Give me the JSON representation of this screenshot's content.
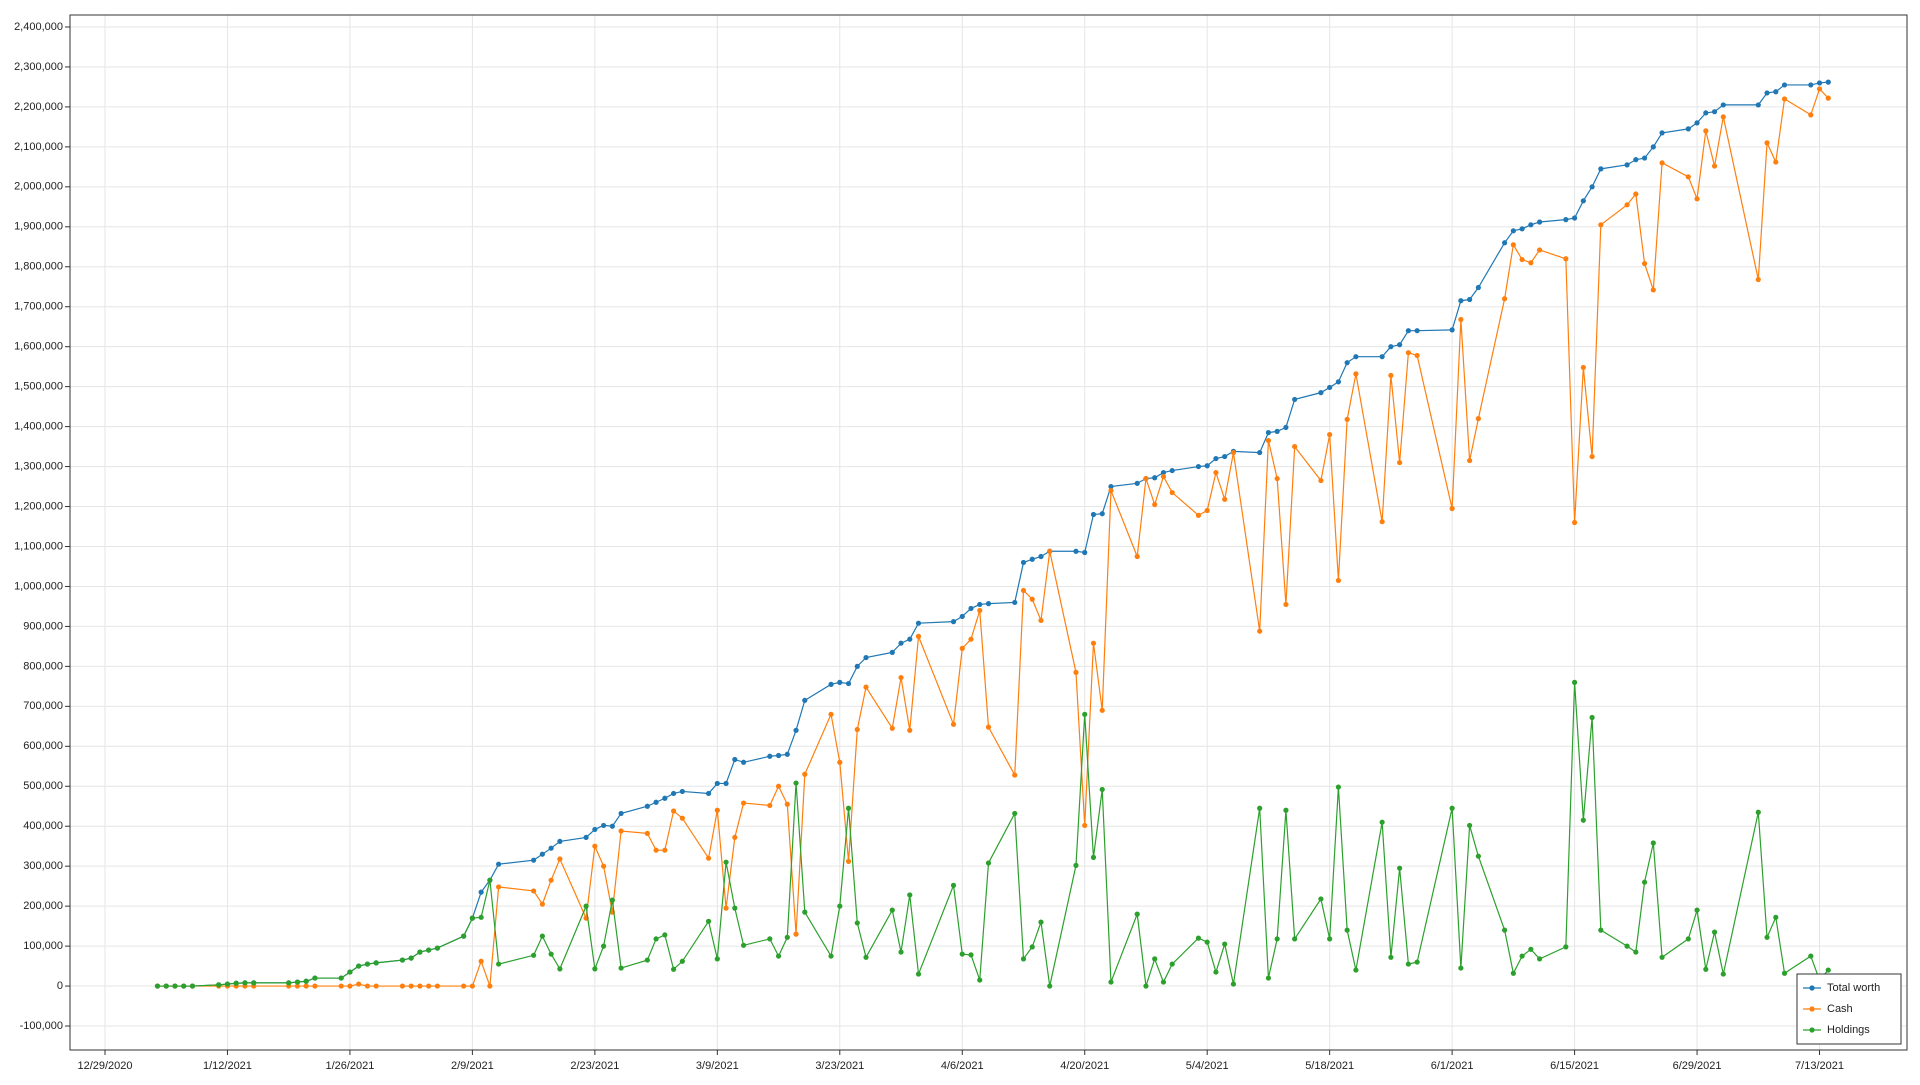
{
  "chart_data": {
    "type": "line",
    "x": [
      "1/4/2021",
      "1/5/2021",
      "1/6/2021",
      "1/7/2021",
      "1/8/2021",
      "1/11/2021",
      "1/12/2021",
      "1/13/2021",
      "1/14/2021",
      "1/15/2021",
      "1/19/2021",
      "1/20/2021",
      "1/21/2021",
      "1/22/2021",
      "1/25/2021",
      "1/26/2021",
      "1/27/2021",
      "1/28/2021",
      "1/29/2021",
      "2/1/2021",
      "2/2/2021",
      "2/3/2021",
      "2/4/2021",
      "2/5/2021",
      "2/8/2021",
      "2/9/2021",
      "2/10/2021",
      "2/11/2021",
      "2/12/2021",
      "2/16/2021",
      "2/17/2021",
      "2/18/2021",
      "2/19/2021",
      "2/22/2021",
      "2/23/2021",
      "2/24/2021",
      "2/25/2021",
      "2/26/2021",
      "3/1/2021",
      "3/2/2021",
      "3/3/2021",
      "3/4/2021",
      "3/5/2021",
      "3/8/2021",
      "3/9/2021",
      "3/10/2021",
      "3/11/2021",
      "3/12/2021",
      "3/15/2021",
      "3/16/2021",
      "3/17/2021",
      "3/18/2021",
      "3/19/2021",
      "3/22/2021",
      "3/23/2021",
      "3/24/2021",
      "3/25/2021",
      "3/26/2021",
      "3/29/2021",
      "3/30/2021",
      "3/31/2021",
      "4/1/2021",
      "4/5/2021",
      "4/6/2021",
      "4/7/2021",
      "4/8/2021",
      "4/9/2021",
      "4/12/2021",
      "4/13/2021",
      "4/14/2021",
      "4/15/2021",
      "4/16/2021",
      "4/19/2021",
      "4/20/2021",
      "4/21/2021",
      "4/22/2021",
      "4/23/2021",
      "4/26/2021",
      "4/27/2021",
      "4/28/2021",
      "4/29/2021",
      "4/30/2021",
      "5/3/2021",
      "5/4/2021",
      "5/5/2021",
      "5/6/2021",
      "5/7/2021",
      "5/10/2021",
      "5/11/2021",
      "5/12/2021",
      "5/13/2021",
      "5/14/2021",
      "5/17/2021",
      "5/18/2021",
      "5/19/2021",
      "5/20/2021",
      "5/21/2021",
      "5/24/2021",
      "5/25/2021",
      "5/26/2021",
      "5/27/2021",
      "5/28/2021",
      "6/1/2021",
      "6/2/2021",
      "6/3/2021",
      "6/4/2021",
      "6/7/2021",
      "6/8/2021",
      "6/9/2021",
      "6/10/2021",
      "6/11/2021",
      "6/14/2021",
      "6/15/2021",
      "6/16/2021",
      "6/17/2021",
      "6/18/2021",
      "6/21/2021",
      "6/22/2021",
      "6/23/2021",
      "6/24/2021",
      "6/25/2021",
      "6/28/2021",
      "6/29/2021",
      "6/30/2021",
      "7/1/2021",
      "7/2/2021",
      "7/6/2021",
      "7/7/2021",
      "7/8/2021",
      "7/9/2021",
      "7/12/2021",
      "7/13/2021",
      "7/14/2021"
    ],
    "series": [
      {
        "name": "Total worth",
        "color": "#1f77b4",
        "values": [
          0,
          0,
          0,
          0,
          0,
          3000,
          5000,
          7000,
          8000,
          8000,
          8000,
          10000,
          12000,
          20000,
          20000,
          35000,
          50000,
          55000,
          58000,
          65000,
          70000,
          85000,
          90000,
          95000,
          125000,
          170000,
          235000,
          265000,
          305000,
          315000,
          330000,
          345000,
          362000,
          372000,
          392000,
          402000,
          400000,
          432000,
          450000,
          460000,
          470000,
          482000,
          487000,
          482000,
          507000,
          507000,
          567000,
          560000,
          575000,
          577000,
          580000,
          640000,
          715000,
          755000,
          760000,
          757000,
          800000,
          822000,
          835000,
          858000,
          868000,
          908000,
          912000,
          925000,
          945000,
          955000,
          957000,
          960000,
          1060000,
          1068000,
          1075000,
          1088000,
          1088000,
          1085000,
          1180000,
          1182000,
          1250000,
          1258000,
          1270000,
          1272000,
          1285000,
          1290000,
          1300000,
          1302000,
          1320000,
          1325000,
          1338000,
          1335000,
          1385000,
          1388000,
          1398000,
          1468000,
          1485000,
          1498000,
          1512000,
          1560000,
          1575000,
          1575000,
          1600000,
          1605000,
          1640000,
          1640000,
          1642000,
          1715000,
          1718000,
          1748000,
          1860000,
          1890000,
          1895000,
          1905000,
          1912000,
          1918000,
          1922000,
          1965000,
          2000000,
          2045000,
          2055000,
          2068000,
          2072000,
          2100000,
          2135000,
          2145000,
          2160000,
          2185000,
          2188000,
          2205000,
          2205000,
          2235000,
          2238000,
          2255000,
          2255000,
          2260000,
          2262000
        ]
      },
      {
        "name": "Cash",
        "color": "#ff7f0e",
        "values": [
          0,
          0,
          0,
          0,
          0,
          0,
          0,
          0,
          0,
          0,
          0,
          0,
          0,
          0,
          0,
          0,
          5000,
          0,
          0,
          0,
          0,
          0,
          0,
          0,
          0,
          0,
          62000,
          0,
          248000,
          238000,
          205000,
          265000,
          318000,
          170000,
          350000,
          300000,
          185000,
          388000,
          382000,
          340000,
          340000,
          438000,
          420000,
          320000,
          440000,
          195000,
          372000,
          458000,
          452000,
          500000,
          455000,
          130000,
          530000,
          680000,
          560000,
          312000,
          642000,
          748000,
          645000,
          772000,
          640000,
          875000,
          655000,
          845000,
          868000,
          940000,
          648000,
          528000,
          990000,
          968000,
          915000,
          1088000,
          785000,
          402000,
          858000,
          690000,
          1240000,
          1075000,
          1270000,
          1205000,
          1275000,
          1235000,
          1178000,
          1190000,
          1285000,
          1218000,
          1335000,
          888000,
          1365000,
          1270000,
          955000,
          1350000,
          1265000,
          1380000,
          1015000,
          1418000,
          1532000,
          1162000,
          1528000,
          1310000,
          1585000,
          1578000,
          1195000,
          1668000,
          1315000,
          1420000,
          1720000,
          1855000,
          1818000,
          1810000,
          1842000,
          1820000,
          1160000,
          1548000,
          1325000,
          1905000,
          1955000,
          1982000,
          1808000,
          1742000,
          2060000,
          2025000,
          1970000,
          2140000,
          2052000,
          2175000,
          1768000,
          2110000,
          2062000,
          2220000,
          2180000,
          2245000,
          2222000
        ]
      },
      {
        "name": "Holdings",
        "color": "#2ca02c",
        "values": [
          0,
          0,
          0,
          0,
          0,
          3000,
          5000,
          7000,
          8000,
          8000,
          8000,
          10000,
          12000,
          20000,
          20000,
          35000,
          50000,
          55000,
          58000,
          65000,
          70000,
          85000,
          90000,
          95000,
          125000,
          170000,
          172000,
          265000,
          55000,
          77000,
          125000,
          80000,
          43000,
          200000,
          43000,
          100000,
          215000,
          45000,
          65000,
          118000,
          128000,
          42000,
          62000,
          162000,
          68000,
          310000,
          195000,
          102000,
          118000,
          75000,
          122000,
          508000,
          185000,
          75000,
          200000,
          445000,
          158000,
          72000,
          190000,
          85000,
          228000,
          30000,
          252000,
          80000,
          78000,
          15000,
          308000,
          432000,
          68000,
          98000,
          160000,
          0,
          302000,
          680000,
          322000,
          492000,
          10000,
          180000,
          0,
          68000,
          10000,
          55000,
          120000,
          110000,
          35000,
          105000,
          5000,
          445000,
          20000,
          118000,
          440000,
          118000,
          218000,
          118000,
          498000,
          140000,
          40000,
          410000,
          72000,
          295000,
          55000,
          60000,
          445000,
          45000,
          402000,
          325000,
          140000,
          32000,
          75000,
          92000,
          68000,
          98000,
          760000,
          415000,
          672000,
          140000,
          100000,
          85000,
          260000,
          358000,
          72000,
          118000,
          190000,
          42000,
          135000,
          30000,
          435000,
          122000,
          172000,
          32000,
          75000,
          15000,
          40000
        ]
      }
    ],
    "xlim": [
      "12/25/2020",
      "7/23/2021"
    ],
    "xticks": [
      "12/29/2020",
      "1/12/2021",
      "1/26/2021",
      "2/9/2021",
      "2/23/2021",
      "3/9/2021",
      "3/23/2021",
      "4/6/2021",
      "4/20/2021",
      "5/4/2021",
      "5/18/2021",
      "6/1/2021",
      "6/15/2021",
      "6/29/2021",
      "7/13/2021"
    ],
    "ylim": [
      -160000,
      2430000
    ],
    "yticks": [
      {
        "value": -100000,
        "label": "-100,000"
      },
      0,
      {
        "value": 100000,
        "label": "100,000"
      },
      {
        "value": 200000,
        "label": "200,000"
      },
      {
        "value": 300000,
        "label": "300,000"
      },
      {
        "value": 400000,
        "label": "400,000"
      },
      {
        "value": 500000,
        "label": "500,000"
      },
      {
        "value": 600000,
        "label": "600,000"
      },
      {
        "value": 700000,
        "label": "700,000"
      },
      {
        "value": 800000,
        "label": "800,000"
      },
      {
        "value": 900000,
        "label": "900,000"
      },
      {
        "value": 1000000,
        "label": "1,000,000"
      },
      {
        "value": 1100000,
        "label": "1,100,000"
      },
      {
        "value": 1200000,
        "label": "1,200,000"
      },
      {
        "value": 1300000,
        "label": "1,300,000"
      },
      {
        "value": 1400000,
        "label": "1,400,000"
      },
      {
        "value": 1500000,
        "label": "1,500,000"
      },
      {
        "value": 1600000,
        "label": "1,600,000"
      },
      {
        "value": 1700000,
        "label": "1,700,000"
      },
      {
        "value": 1800000,
        "label": "1,800,000"
      },
      {
        "value": 1900000,
        "label": "1,900,000"
      },
      {
        "value": 2000000,
        "label": "2,000,000"
      },
      {
        "value": 2100000,
        "label": "2,100,000"
      },
      {
        "value": 2200000,
        "label": "2,200,000"
      },
      {
        "value": 2300000,
        "label": "2,300,000"
      },
      {
        "value": 2400000,
        "label": "2,400,000"
      }
    ],
    "grid": true,
    "legend": "lower right"
  }
}
